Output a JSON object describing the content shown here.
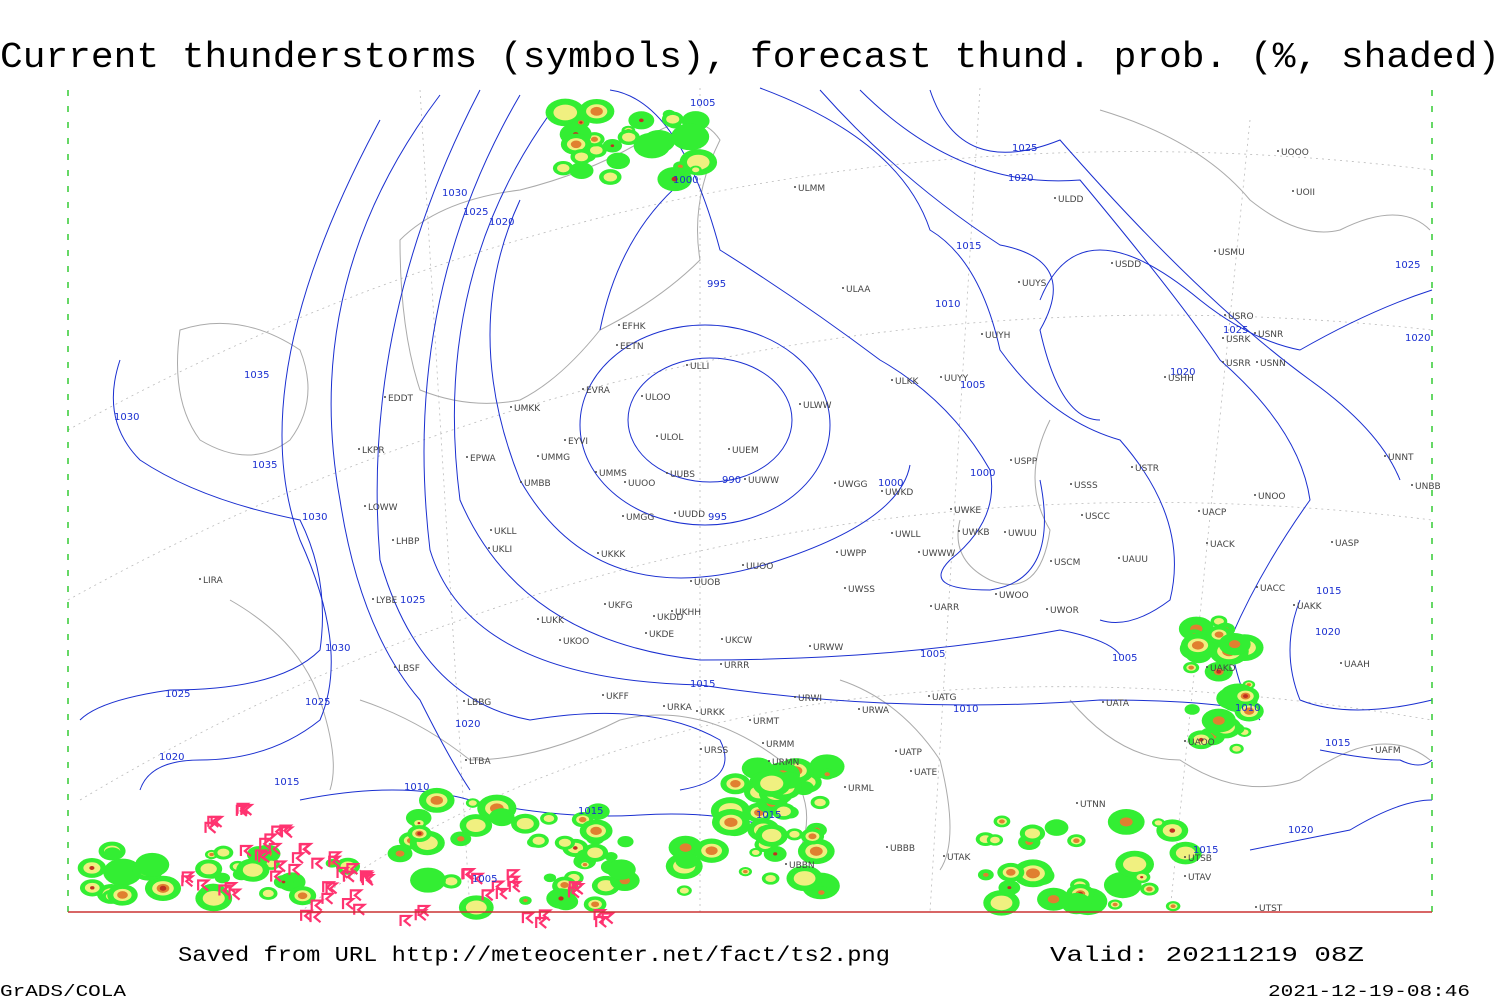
{
  "title": "Current thunderstorms (symbols), forecast thund. prob. (%, shaded)",
  "footer": {
    "source": "Saved from URL http://meteocenter.net/fact/ts2.png",
    "valid": "Valid: 20211219 08Z",
    "software": "GrADS/COLA",
    "timestamp": "2021-12-19-08:46"
  },
  "isobar_labels": [
    1005,
    1000,
    1030,
    1025,
    1020,
    1025,
    1020,
    1015,
    1010,
    995,
    1005,
    990,
    995,
    1000,
    1000,
    1035,
    1030,
    1035,
    1030,
    1025,
    1030,
    1025,
    1025,
    1020,
    1015,
    1005,
    1010,
    1005,
    1020,
    1025,
    1025,
    1020,
    1015,
    1020,
    1010,
    1015,
    1020,
    1015,
    1010,
    1015,
    1015,
    1005,
    1020,
    1015
  ],
  "stations": [
    "ULMM",
    "ULDD",
    "USDD",
    "USMU",
    "UUYS",
    "ULAA",
    "USRO",
    "USRK",
    "USNR",
    "USRR",
    "USNN",
    "USHH",
    "UUYH",
    "EFHK",
    "EETN",
    "ULLI",
    "EVRA",
    "ULKK",
    "UUYY",
    "ULOO",
    "ULWW",
    "EDDT",
    "UMKK",
    "ULOL",
    "UUEM",
    "EYVI",
    "UMMG",
    "EPWA",
    "LKPR",
    "USPP",
    "USTR",
    "UNNT",
    "UMMS",
    "UUOO",
    "UUBS",
    "UUWW",
    "UWGG",
    "UWKD",
    "UMBB",
    "USSS",
    "UNBB",
    "UNOO",
    "LOWW",
    "UWKE",
    "UWKB",
    "UWUU",
    "USCC",
    "UACP",
    "UMGG",
    "UUDD",
    "UKLL",
    "UKLI",
    "LHBP",
    "UWLL",
    "UACK",
    "UASP",
    "UKKK",
    "UWPP",
    "UWWW",
    "UUOO",
    "USCM",
    "UAUU",
    "LIRA",
    "UUOB",
    "UWSS",
    "UACC",
    "LYBE",
    "UKHH",
    "UKFG",
    "UKDD",
    "UARR",
    "UWOO",
    "UWOR",
    "UAKK",
    "LUKK",
    "UKDE",
    "UKOO",
    "UKCW",
    "URWW",
    "LBSF",
    "URRR",
    "UAKD",
    "UAAH",
    "UKFF",
    "LBBG",
    "URKA",
    "URKK",
    "URWI",
    "UATG",
    "UATA",
    "URWA",
    "URMT",
    "URMM",
    "URSS",
    "UATP",
    "UAOO",
    "UAFM",
    "URMN",
    "UATE",
    "LTBA",
    "URML",
    "UTNN",
    "UTAK",
    "UBBB",
    "UBBN",
    "UTSB",
    "UTAV",
    "UTST",
    "UOOO",
    "UOII"
  ]
}
